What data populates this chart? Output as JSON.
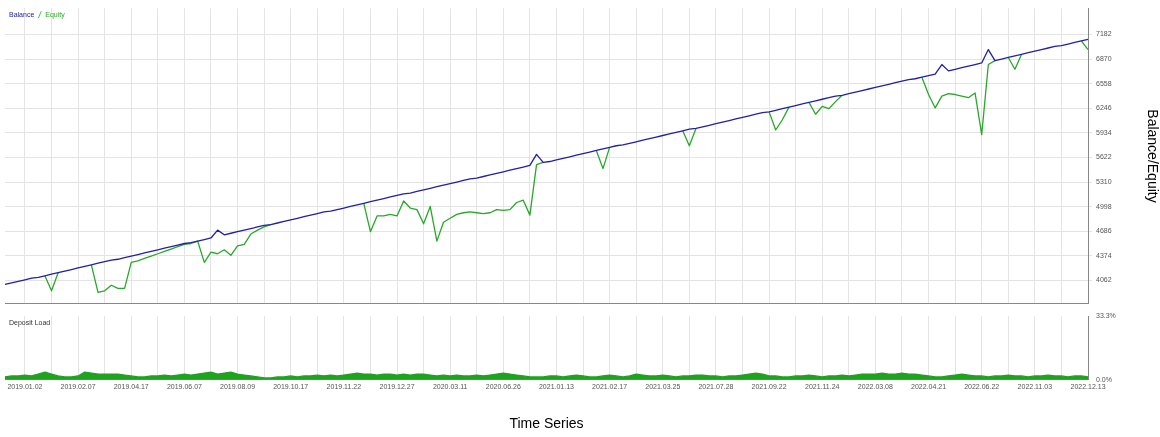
{
  "chart_data": [
    {
      "type": "line",
      "ylabel": "Balance/Equity",
      "legend": "top left",
      "grid": true,
      "tick_labels": "y",
      "categories": [
        null,
        null,
        null,
        "2019.01.02",
        null,
        null,
        null,
        null,
        null,
        null,
        null,
        "2019.02.07",
        null,
        null,
        null,
        null,
        null,
        null,
        null,
        "2019.04.17",
        null,
        null,
        null,
        null,
        null,
        null,
        null,
        "2019.06.07",
        null,
        null,
        null,
        null,
        null,
        null,
        null,
        "2019.08.09",
        null,
        null,
        null,
        null,
        null,
        null,
        null,
        "2019.10.17",
        null,
        null,
        null,
        null,
        null,
        null,
        null,
        "2019.11.22",
        null,
        null,
        null,
        null,
        null,
        null,
        null,
        "2019.12.27",
        null,
        null,
        null,
        null,
        null,
        null,
        null,
        "2020.03.11",
        null,
        null,
        null,
        null,
        null,
        null,
        null,
        "2020.06.26",
        null,
        null,
        null,
        null,
        null,
        null,
        null,
        "2021.01.13",
        null,
        null,
        null,
        null,
        null,
        null,
        null,
        "2021.02.17",
        null,
        null,
        null,
        null,
        null,
        null,
        null,
        "2021.03.25",
        null,
        null,
        null,
        null,
        null,
        null,
        null,
        "2021.07.28",
        null,
        null,
        null,
        null,
        null,
        null,
        null,
        "2021.09.22",
        null,
        null,
        null,
        null,
        null,
        null,
        null,
        "2021.11.24",
        null,
        null,
        null,
        null,
        null,
        null,
        null,
        "2022.03.08",
        null,
        null,
        null,
        null,
        null,
        null,
        null,
        "2022.04.21",
        null,
        null,
        null,
        null,
        null,
        null,
        null,
        "2022.06.22",
        null,
        null,
        null,
        null,
        null,
        null,
        null,
        "2022.11.03",
        null,
        null,
        null,
        null,
        null,
        null,
        null,
        "2022.12.13"
      ],
      "ylim": [
        3765,
        7515
      ],
      "yticks": [
        4062,
        4374,
        4686,
        4998,
        5310,
        5622,
        5934,
        6246,
        6558,
        6870,
        7182
      ],
      "series": [
        {
          "name": "Balance",
          "color": "#2020a8",
          "values": [
            4010,
            4030,
            4050,
            4070,
            4090,
            4100,
            4120,
            4140,
            4160,
            4180,
            4200,
            4220,
            4240,
            4260,
            4280,
            4300,
            4320,
            4330,
            4350,
            4370,
            4390,
            4410,
            4430,
            4450,
            4470,
            4490,
            4510,
            4530,
            4540,
            4560,
            4580,
            4600,
            4700,
            4640,
            4660,
            4680,
            4700,
            4720,
            4740,
            4760,
            4770,
            4790,
            4810,
            4830,
            4850,
            4870,
            4890,
            4910,
            4930,
            4940,
            4960,
            4980,
            5000,
            5020,
            5040,
            5060,
            5080,
            5100,
            5120,
            5140,
            5160,
            5170,
            5190,
            5210,
            5230,
            5250,
            5270,
            5290,
            5310,
            5330,
            5350,
            5360,
            5380,
            5400,
            5420,
            5440,
            5460,
            5480,
            5500,
            5520,
            5660,
            5560,
            5570,
            5590,
            5610,
            5630,
            5650,
            5670,
            5690,
            5710,
            5730,
            5750,
            5770,
            5780,
            5800,
            5820,
            5840,
            5860,
            5880,
            5900,
            5920,
            5940,
            5960,
            5980,
            5990,
            6010,
            6030,
            6050,
            6070,
            6090,
            6110,
            6130,
            6150,
            6170,
            6190,
            6200,
            6220,
            6240,
            6260,
            6280,
            6300,
            6320,
            6340,
            6360,
            6380,
            6400,
            6410,
            6430,
            6450,
            6470,
            6490,
            6510,
            6530,
            6550,
            6570,
            6590,
            6610,
            6620,
            6640,
            6660,
            6680,
            6800,
            6720,
            6740,
            6760,
            6780,
            6800,
            6820,
            6990,
            6850,
            6870,
            6890,
            6910,
            6930,
            6950,
            6970,
            6990,
            7010,
            7030,
            7040,
            7060,
            7080,
            7100,
            7120
          ]
        },
        {
          "name": "Equity",
          "color": "#28a828",
          "values": [
            null,
            null,
            null,
            null,
            null,
            null,
            4120,
            3930,
            4160,
            null,
            null,
            null,
            null,
            4260,
            3910,
            3930,
            4000,
            3960,
            3960,
            4290,
            4310,
            4340,
            4370,
            4400,
            4430,
            4460,
            4490,
            4520,
            4530,
            4560,
            4290,
            4420,
            4400,
            4450,
            4380,
            4500,
            4520,
            4650,
            4700,
            4740,
            4770,
            null,
            null,
            null,
            null,
            null,
            null,
            null,
            null,
            null,
            null,
            null,
            null,
            null,
            5040,
            4680,
            4880,
            4880,
            4900,
            4880,
            5070,
            4980,
            4960,
            4780,
            5000,
            4560,
            4800,
            4850,
            4900,
            4920,
            4930,
            4920,
            4910,
            4920,
            4960,
            4950,
            4960,
            5050,
            5080,
            4890,
            5530,
            5560,
            null,
            null,
            null,
            null,
            null,
            null,
            null,
            5710,
            5480,
            5750,
            null,
            null,
            null,
            null,
            null,
            null,
            null,
            null,
            null,
            null,
            5960,
            5770,
            5990,
            null,
            null,
            null,
            null,
            null,
            null,
            null,
            null,
            null,
            null,
            6200,
            5970,
            6100,
            6260,
            null,
            null,
            6320,
            6170,
            6270,
            6240,
            6330,
            6410,
            null,
            null,
            null,
            null,
            null,
            null,
            null,
            null,
            null,
            null,
            null,
            6640,
            6420,
            6250,
            6400,
            6430,
            6420,
            6400,
            6380,
            6440,
            5910,
            6800,
            6850,
            null,
            6890,
            6740,
            6930,
            null,
            null,
            null,
            null,
            null,
            null,
            null,
            null,
            7100,
            6990
          ]
        }
      ]
    },
    {
      "type": "area",
      "title": "Deposit Load",
      "xlabel": "Time Series",
      "grid": "x",
      "categories": [
        null,
        null,
        null,
        "2019.01.02",
        null,
        null,
        null,
        null,
        null,
        null,
        null,
        "2019.02.07",
        null,
        null,
        null,
        null,
        null,
        null,
        null,
        "2019.04.17",
        null,
        null,
        null,
        null,
        null,
        null,
        null,
        "2019.06.07",
        null,
        null,
        null,
        null,
        null,
        null,
        null,
        "2019.08.09",
        null,
        null,
        null,
        null,
        null,
        null,
        null,
        "2019.10.17",
        null,
        null,
        null,
        null,
        null,
        null,
        null,
        "2019.11.22",
        null,
        null,
        null,
        null,
        null,
        null,
        null,
        "2019.12.27",
        null,
        null,
        null,
        null,
        null,
        null,
        null,
        "2020.03.11",
        null,
        null,
        null,
        null,
        null,
        null,
        null,
        "2020.06.26",
        null,
        null,
        null,
        null,
        null,
        null,
        null,
        "2021.01.13",
        null,
        null,
        null,
        null,
        null,
        null,
        null,
        "2021.02.17",
        null,
        null,
        null,
        null,
        null,
        null,
        null,
        "2021.03.25",
        null,
        null,
        null,
        null,
        null,
        null,
        null,
        "2021.07.28",
        null,
        null,
        null,
        null,
        null,
        null,
        null,
        "2021.09.22",
        null,
        null,
        null,
        null,
        null,
        null,
        null,
        "2021.11.24",
        null,
        null,
        null,
        null,
        null,
        null,
        null,
        "2022.03.08",
        null,
        null,
        null,
        null,
        null,
        null,
        null,
        "2022.04.21",
        null,
        null,
        null,
        null,
        null,
        null,
        null,
        "2022.06.22",
        null,
        null,
        null,
        null,
        null,
        null,
        null,
        "2022.11.03",
        null,
        null,
        null,
        null,
        null,
        null,
        null,
        "2022.12.13"
      ],
      "ylim": [
        0,
        33.3
      ],
      "yticks": [
        {
          "value": 0,
          "label": "0.0%"
        },
        {
          "value": 33.3,
          "label": "33.3%"
        }
      ],
      "series": [
        {
          "color": "#1ea31e",
          "values": [
            1.5,
            2,
            2,
            2.5,
            2,
            3,
            4,
            3,
            2,
            1.5,
            1.5,
            2,
            4,
            3.5,
            3,
            3,
            3,
            3,
            2.5,
            2,
            1.5,
            1.5,
            2,
            2,
            2.5,
            2,
            2.5,
            3,
            2.5,
            3,
            3.5,
            4,
            3,
            3.5,
            4,
            3,
            2.5,
            2,
            1.5,
            1,
            1,
            1.5,
            1.5,
            2,
            1.5,
            2,
            2,
            2.5,
            2,
            2.5,
            2,
            2.5,
            3,
            3.5,
            3,
            3,
            2.5,
            3,
            3,
            2.5,
            3,
            2.5,
            3,
            3,
            2.5,
            2,
            2.5,
            2,
            2.5,
            2,
            2,
            2.5,
            2,
            2.5,
            3,
            3.5,
            3,
            2.5,
            2,
            1.5,
            1.5,
            1.5,
            2,
            2,
            1.5,
            2,
            2.5,
            2,
            1.5,
            1.5,
            2,
            2.5,
            2,
            1.5,
            2,
            3,
            2.5,
            2,
            2,
            2.5,
            2,
            1.5,
            2,
            2,
            2.5,
            2.5,
            2,
            2,
            1.5,
            2,
            2,
            2.5,
            3,
            3.5,
            3,
            2,
            2,
            1.5,
            1.5,
            2,
            2,
            2.5,
            2,
            1.5,
            2,
            2,
            2.5,
            2,
            2.5,
            3,
            3,
            3,
            3.5,
            3,
            3,
            3.5,
            3,
            3,
            2.5,
            2,
            1.5,
            1.5,
            2,
            2.5,
            3,
            2.5,
            2,
            2,
            1.5,
            2,
            2,
            2.5,
            2,
            2,
            1.5,
            2,
            2,
            2.5,
            2,
            2,
            1.5,
            2,
            2,
            1.5
          ]
        }
      ]
    }
  ]
}
